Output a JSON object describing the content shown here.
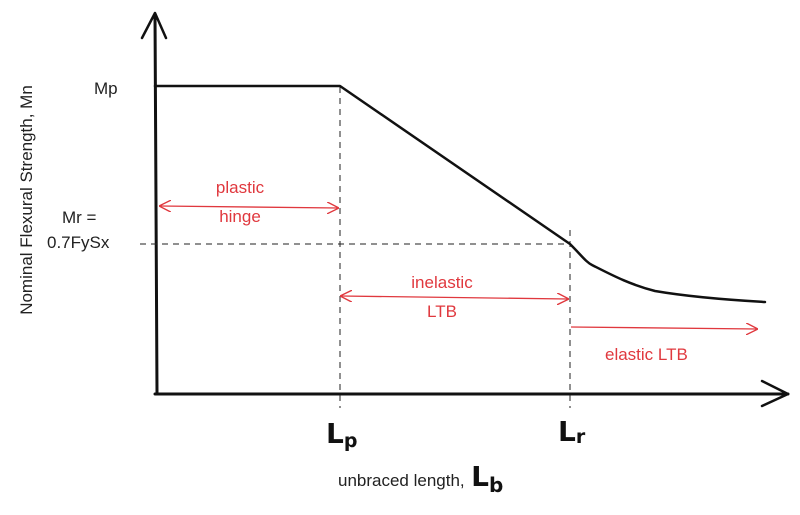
{
  "diagram": {
    "y_axis_label": "Nominal Flexural Strength, Mn",
    "x_axis_label": "unbraced length,",
    "x_axis_symbol": {
      "main": "L",
      "sub": "b"
    },
    "mp_label": "Mp",
    "mr_label_line1": "Mr =",
    "mr_label_line2": "0.7FySx",
    "lp_symbol": {
      "main": "L",
      "sub": "p"
    },
    "lr_symbol": {
      "main": "L",
      "sub": "r"
    },
    "regions": {
      "plastic": {
        "line1": "plastic",
        "line2": "hinge"
      },
      "inelastic": {
        "line1": "inelastic",
        "line2": "LTB"
      },
      "elastic": {
        "line1": "elastic LTB"
      }
    },
    "colors": {
      "curve": "#111111",
      "annotation": "#e0383e",
      "dashed": "#222222"
    }
  }
}
